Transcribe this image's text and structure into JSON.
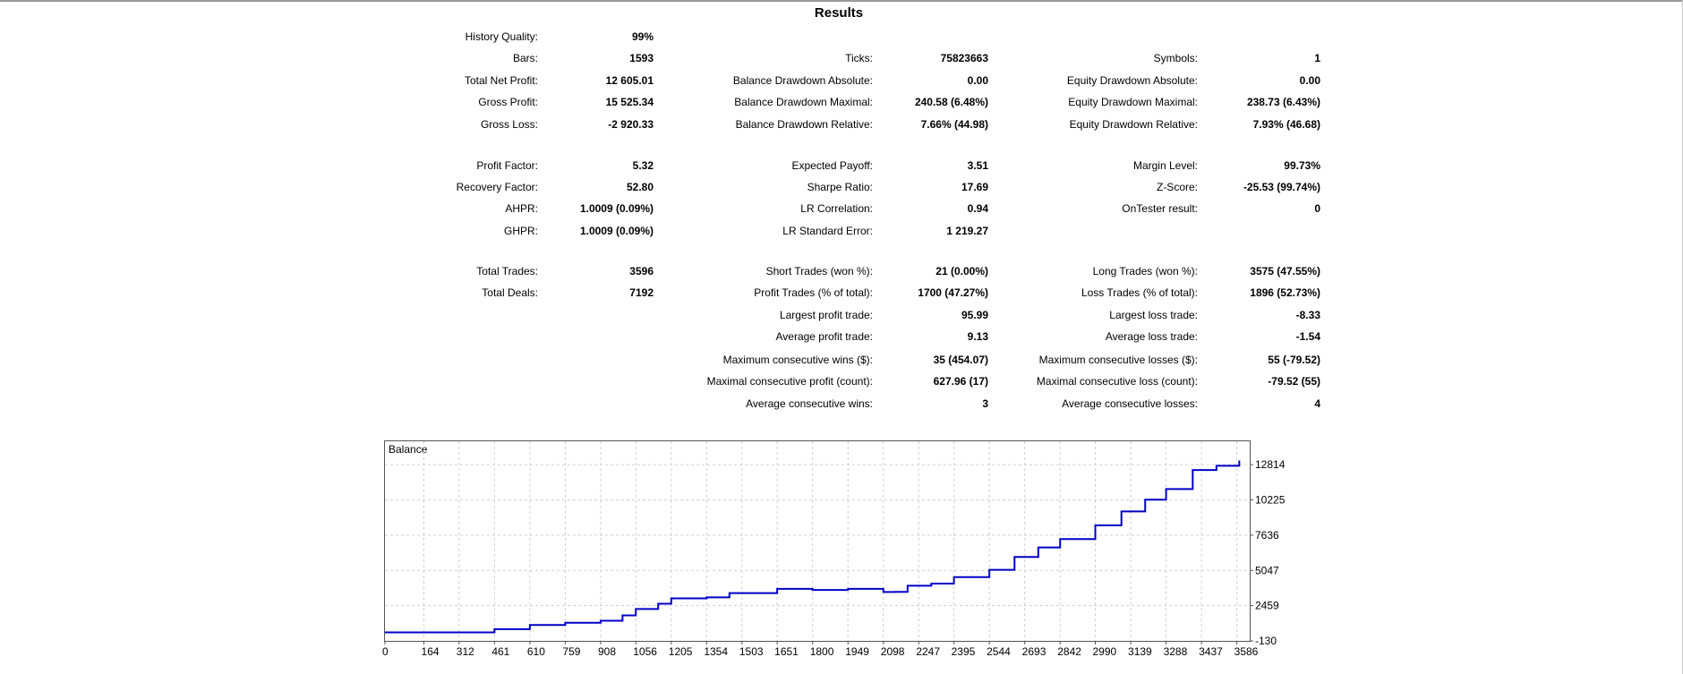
{
  "title": "Results",
  "rows": [
    [
      {
        "label": "History Quality:",
        "value": "99%"
      },
      null,
      null
    ],
    [
      {
        "label": "Bars:",
        "value": "1593"
      },
      {
        "label": "Ticks:",
        "value": "75823663"
      },
      {
        "label": "Symbols:",
        "value": "1"
      }
    ],
    [
      {
        "label": "Total Net Profit:",
        "value": "12 605.01"
      },
      {
        "label": "Balance Drawdown Absolute:",
        "value": "0.00"
      },
      {
        "label": "Equity Drawdown Absolute:",
        "value": "0.00"
      }
    ],
    [
      {
        "label": "Gross Profit:",
        "value": "15 525.34"
      },
      {
        "label": "Balance Drawdown Maximal:",
        "value": "240.58 (6.48%)"
      },
      {
        "label": "Equity Drawdown Maximal:",
        "value": "238.73 (6.43%)"
      }
    ],
    [
      {
        "label": "Gross Loss:",
        "value": "-2 920.33"
      },
      {
        "label": "Balance Drawdown Relative:",
        "value": "7.66% (44.98)"
      },
      {
        "label": "Equity Drawdown Relative:",
        "value": "7.93% (46.68)"
      }
    ],
    [
      {
        "label": "Profit Factor:",
        "value": "5.32"
      },
      {
        "label": "Expected Payoff:",
        "value": "3.51"
      },
      {
        "label": "Margin Level:",
        "value": "99.73%"
      }
    ],
    [
      {
        "label": "Recovery Factor:",
        "value": "52.80"
      },
      {
        "label": "Sharpe Ratio:",
        "value": "17.69"
      },
      {
        "label": "Z-Score:",
        "value": "-25.53 (99.74%)"
      }
    ],
    [
      {
        "label": "AHPR:",
        "value": "1.0009 (0.09%)"
      },
      {
        "label": "LR Correlation:",
        "value": "0.94"
      },
      {
        "label": "OnTester result:",
        "value": "0"
      }
    ],
    [
      {
        "label": "GHPR:",
        "value": "1.0009 (0.09%)"
      },
      {
        "label": "LR Standard Error:",
        "value": "1 219.27"
      },
      null
    ],
    [
      {
        "label": "Total Trades:",
        "value": "3596"
      },
      {
        "label": "Short Trades (won %):",
        "value": "21 (0.00%)"
      },
      {
        "label": "Long Trades (won %):",
        "value": "3575 (47.55%)"
      }
    ],
    [
      {
        "label": "Total Deals:",
        "value": "7192"
      },
      {
        "label": "Profit Trades (% of total):",
        "value": "1700 (47.27%)"
      },
      {
        "label": "Loss Trades (% of total):",
        "value": "1896 (52.73%)"
      }
    ],
    [
      null,
      {
        "label": "Largest profit trade:",
        "value": "95.99"
      },
      {
        "label": "Largest loss trade:",
        "value": "-8.33"
      }
    ],
    [
      null,
      {
        "label": "Average profit trade:",
        "value": "9.13"
      },
      {
        "label": "Average loss trade:",
        "value": "-1.54"
      }
    ],
    [
      null,
      {
        "label": "Maximum consecutive wins ($):",
        "value": "35 (454.07)"
      },
      {
        "label": "Maximum consecutive losses ($):",
        "value": "55 (-79.52)"
      }
    ],
    [
      null,
      {
        "label": "Maximal consecutive profit (count):",
        "value": "627.96 (17)"
      },
      {
        "label": "Maximal consecutive loss (count):",
        "value": "-79.52 (55)"
      }
    ],
    [
      null,
      {
        "label": "Average consecutive wins:",
        "value": "3"
      },
      {
        "label": "Average consecutive losses:",
        "value": "4"
      }
    ]
  ],
  "chart_data": {
    "type": "line",
    "title": "Balance",
    "xlabel": "",
    "ylabel": "",
    "x_ticks": [
      0,
      164,
      312,
      461,
      610,
      759,
      908,
      1056,
      1205,
      1354,
      1503,
      1651,
      1800,
      1949,
      2098,
      2247,
      2395,
      2544,
      2693,
      2842,
      2990,
      3139,
      3288,
      3437,
      3586
    ],
    "y_ticks": [
      -130,
      2459,
      5047,
      7636,
      10225,
      12814
    ],
    "xlim": [
      0,
      3640
    ],
    "ylim": [
      -130,
      14530
    ],
    "grid": true,
    "series": [
      {
        "name": "Balance",
        "color": "#0000c8",
        "x": [
          0,
          312,
          461,
          610,
          759,
          908,
          1000,
          1056,
          1150,
          1205,
          1354,
          1450,
          1651,
          1800,
          1949,
          2098,
          2150,
          2200,
          2300,
          2395,
          2544,
          2650,
          2750,
          2842,
          2990,
          3100,
          3200,
          3288,
          3400,
          3500,
          3596
        ],
        "y": [
          494,
          494,
          730,
          1040,
          1200,
          1350,
          1740,
          2210,
          2600,
          2990,
          3070,
          3380,
          3690,
          3610,
          3690,
          3460,
          3470,
          3920,
          4080,
          4550,
          5090,
          6030,
          6730,
          7350,
          8360,
          9380,
          10240,
          11020,
          12420,
          12730,
          13120
        ]
      }
    ]
  }
}
